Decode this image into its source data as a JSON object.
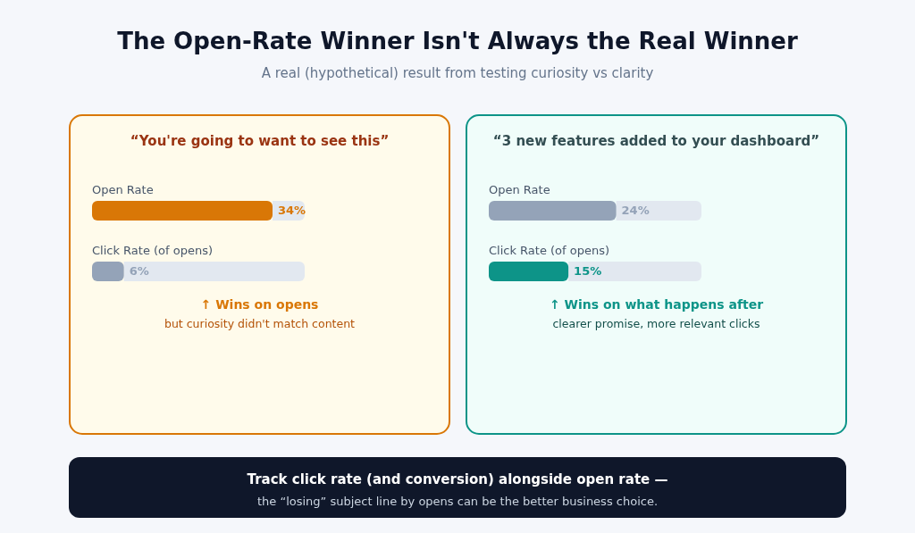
{
  "chart_data": [
    {
      "type": "other",
      "title": "The Open-Rate Winner Isn't Always the Real Winner",
      "subtitle": "A real (hypothetical) result from testing curiosity vs clarity"
    },
    {
      "type": "bar",
      "orientation": "horizontal",
      "title": "“You're going to want to see this”",
      "categories": [
        "Open Rate",
        "Click Rate (of opens)"
      ],
      "values": [
        34,
        6
      ],
      "colors": [
        "#d97706",
        "#94a3b8"
      ],
      "value_labels": [
        "34%",
        "6%"
      ],
      "annotations": [
        "↑ Wins on opens",
        "but curiosity didn't match content"
      ]
    },
    {
      "type": "bar",
      "orientation": "horizontal",
      "title": "“3 new features added to your dashboard”",
      "categories": [
        "Open Rate",
        "Click Rate (of opens)"
      ],
      "values": [
        24,
        15
      ],
      "colors": [
        "#94a3b8",
        "#0d9488"
      ],
      "value_labels": [
        "24%",
        "15%"
      ],
      "annotations": [
        "↑ Wins on what happens after",
        "clearer promise, more relevant clicks"
      ]
    },
    {
      "type": "other",
      "title": "Track click rate (and conversion) alongside open rate —",
      "subtitle": "the “losing” subject line by opens can be the better business choice."
    }
  ]
}
